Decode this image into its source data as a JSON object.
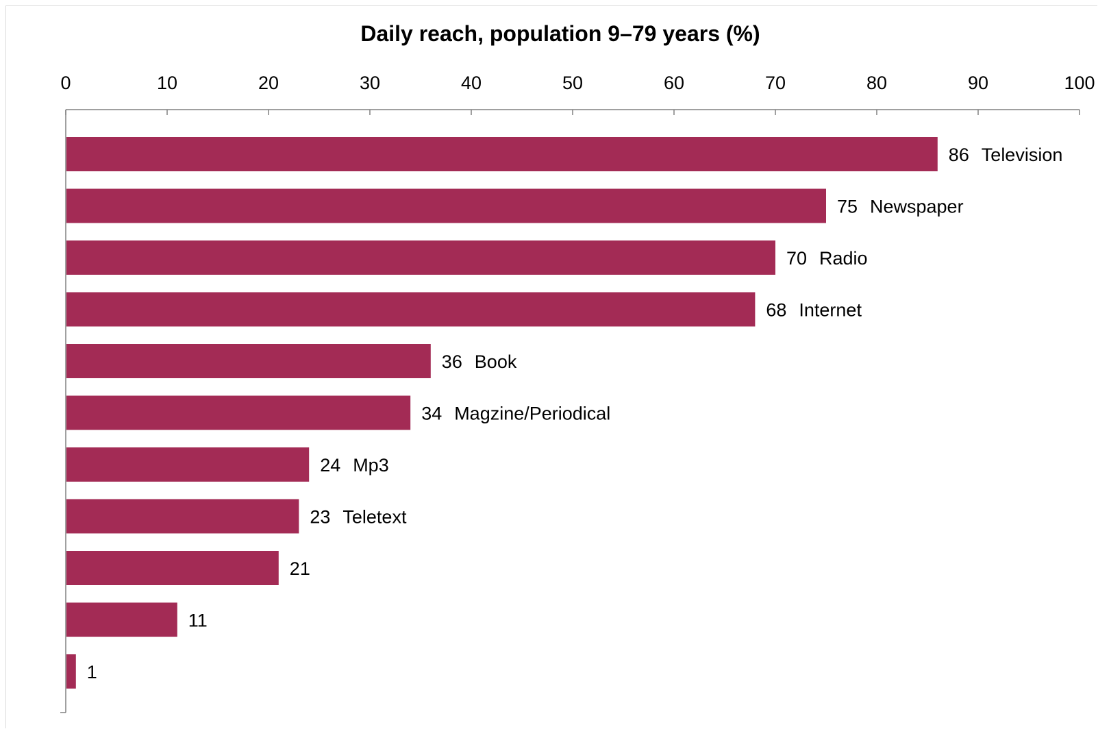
{
  "chart_data": {
    "type": "bar",
    "orientation": "horizontal",
    "title": "Daily reach, population 9–79 years (%)",
    "xlabel": "",
    "ylabel": "",
    "xlim": [
      0,
      100
    ],
    "x_ticks": [
      "0",
      "10",
      "20",
      "30",
      "40",
      "50",
      "60",
      "70",
      "80",
      "90",
      "100"
    ],
    "x_axis_position": "top",
    "grid": false,
    "legend": "none",
    "bar_color": "#a32b55",
    "categories": [
      "Television",
      "Newspaper",
      "Radio",
      "Internet",
      "Book",
      "Magzine/Periodical",
      "Mp3",
      "Teletext",
      "",
      "",
      ""
    ],
    "values": [
      86,
      75,
      70,
      68,
      36,
      34,
      24,
      23,
      21,
      11,
      1
    ],
    "data_labels": [
      "86",
      "75",
      "70",
      "68",
      "36",
      "34",
      "24",
      "23",
      "21",
      "11",
      "1"
    ]
  }
}
